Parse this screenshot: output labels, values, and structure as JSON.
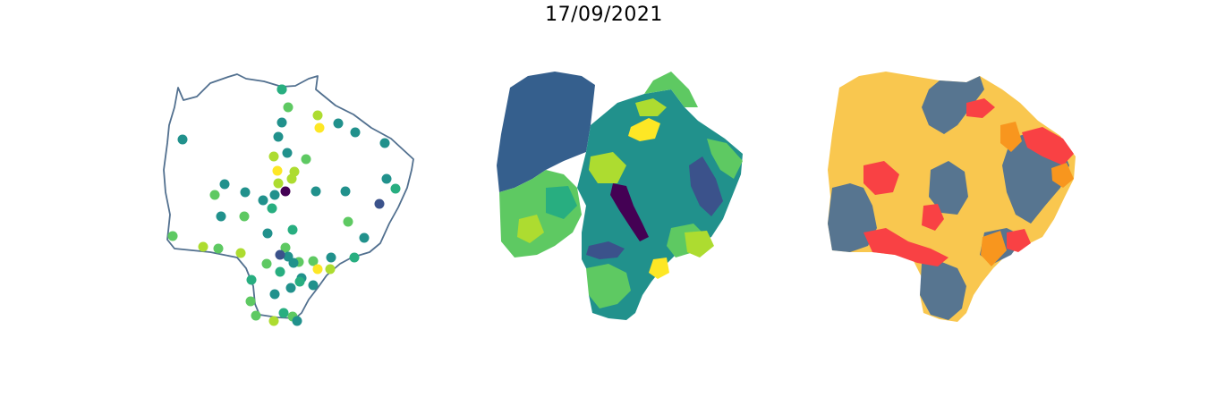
{
  "figure": {
    "title": "17/09/2021"
  },
  "colors": {
    "outline": "#52708f",
    "viridis": [
      "#440154",
      "#3b528b",
      "#2c728e",
      "#21918c",
      "#28ae80",
      "#5ec962",
      "#addc30",
      "#fde725"
    ],
    "background_blue": "#355f8d",
    "risk_yellow": "#f9c74f",
    "risk_slate": "#577590",
    "risk_red": "#f94144",
    "risk_orange": "#f8961e"
  },
  "panels": [
    {
      "id": "stations",
      "kind": "point-map",
      "point_color_scale": "viridis"
    },
    {
      "id": "municipal-choropleth",
      "kind": "choropleth",
      "color_scale": "viridis"
    },
    {
      "id": "category-map",
      "kind": "categorical-choropleth",
      "categories": [
        "risk_yellow",
        "risk_slate",
        "risk_red",
        "risk_orange"
      ]
    }
  ]
}
